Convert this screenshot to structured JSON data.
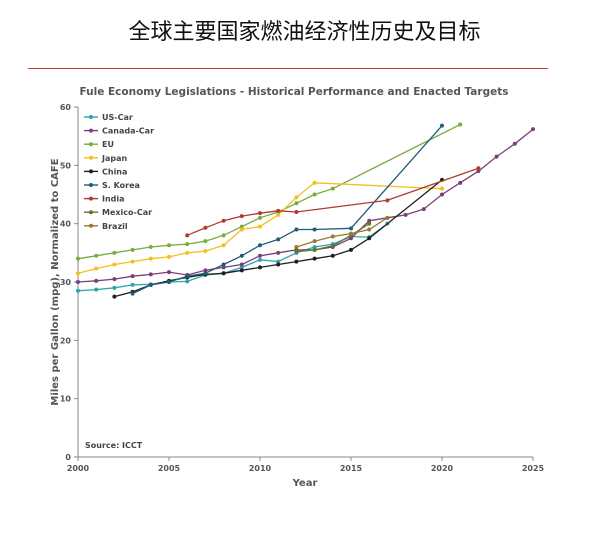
{
  "page": {
    "title": "全球主要国家燃油经济性历史及目标"
  },
  "chart_data": {
    "type": "line",
    "title": "Fule Economy Legislations - Historical Performance and Enacted Targets",
    "xlabel": "Year",
    "ylabel": "Miles per Gallon (mpg), Normalized to CAFE",
    "xlim": [
      2000,
      2025
    ],
    "ylim": [
      0,
      60
    ],
    "xticks": [
      2000,
      2005,
      2010,
      2015,
      2020,
      2025
    ],
    "yticks": [
      0,
      10,
      20,
      30,
      40,
      50,
      60
    ],
    "grid": false,
    "legend_position": "top-left",
    "source": "Source: ICCT",
    "series": [
      {
        "name": "US-Car",
        "color": "#2aa6b0",
        "points": [
          [
            2000,
            28.5
          ],
          [
            2001,
            28.7
          ],
          [
            2002,
            29
          ],
          [
            2003,
            29.5
          ],
          [
            2004,
            29.6
          ],
          [
            2005,
            30
          ],
          [
            2006,
            30.1
          ],
          [
            2007,
            31.2
          ],
          [
            2008,
            31.5
          ],
          [
            2009,
            32.5
          ],
          [
            2010,
            33.8
          ],
          [
            2011,
            33.5
          ],
          [
            2012,
            35
          ],
          [
            2013,
            36
          ],
          [
            2014,
            36.5
          ],
          [
            2015,
            37.8
          ],
          [
            2016,
            37.7
          ],
          [
            2017,
            40
          ]
        ]
      },
      {
        "name": "Canada-Car",
        "color": "#7b3f77",
        "points": [
          [
            2000,
            30
          ],
          [
            2001,
            30.2
          ],
          [
            2002,
            30.5
          ],
          [
            2003,
            31
          ],
          [
            2004,
            31.3
          ],
          [
            2005,
            31.7
          ],
          [
            2006,
            31.2
          ],
          [
            2007,
            32
          ],
          [
            2008,
            32.5
          ],
          [
            2009,
            33
          ],
          [
            2010,
            34.5
          ],
          [
            2011,
            35
          ],
          [
            2012,
            35.5
          ],
          [
            2013,
            35.5
          ],
          [
            2014,
            36
          ],
          [
            2015,
            37.5
          ],
          [
            2016,
            40.5
          ],
          [
            2017,
            41
          ],
          [
            2018,
            41.5
          ],
          [
            2019,
            42.5
          ],
          [
            2020,
            45
          ],
          [
            2021,
            47
          ],
          [
            2022,
            49
          ],
          [
            2023,
            51.5
          ],
          [
            2024,
            53.7
          ],
          [
            2025,
            56.2
          ]
        ]
      },
      {
        "name": "EU",
        "color": "#7aab3d",
        "points": [
          [
            2000,
            34
          ],
          [
            2001,
            34.5
          ],
          [
            2002,
            35
          ],
          [
            2003,
            35.5
          ],
          [
            2004,
            36
          ],
          [
            2005,
            36.3
          ],
          [
            2006,
            36.5
          ],
          [
            2007,
            37
          ],
          [
            2008,
            38
          ],
          [
            2009,
            39.5
          ],
          [
            2010,
            41
          ],
          [
            2011,
            42
          ],
          [
            2012,
            43.5
          ],
          [
            2013,
            45
          ],
          [
            2014,
            46
          ],
          [
            2021,
            57
          ]
        ]
      },
      {
        "name": "Japan",
        "color": "#f2c01e",
        "points": [
          [
            2000,
            31.5
          ],
          [
            2001,
            32.3
          ],
          [
            2002,
            33
          ],
          [
            2003,
            33.5
          ],
          [
            2004,
            34
          ],
          [
            2005,
            34.3
          ],
          [
            2006,
            35
          ],
          [
            2007,
            35.3
          ],
          [
            2008,
            36.3
          ],
          [
            2009,
            39
          ],
          [
            2010,
            39.5
          ],
          [
            2011,
            41.5
          ],
          [
            2012,
            44.5
          ],
          [
            2013,
            47
          ],
          [
            2020,
            46
          ]
        ]
      },
      {
        "name": "China",
        "color": "#1f1f1f",
        "points": [
          [
            2002,
            27.5
          ],
          [
            2003,
            28.3
          ],
          [
            2004,
            29.5
          ],
          [
            2005,
            30.2
          ],
          [
            2006,
            30.8
          ],
          [
            2007,
            31.3
          ],
          [
            2008,
            31.5
          ],
          [
            2009,
            32
          ],
          [
            2010,
            32.5
          ],
          [
            2011,
            33
          ],
          [
            2012,
            33.5
          ],
          [
            2013,
            34
          ],
          [
            2014,
            34.5
          ],
          [
            2015,
            35.5
          ],
          [
            2016,
            37.5
          ],
          [
            2020,
            47.5
          ]
        ]
      },
      {
        "name": "S. Korea",
        "color": "#1f5d78",
        "points": [
          [
            2003,
            28
          ],
          [
            2004,
            29.5
          ],
          [
            2005,
            30
          ],
          [
            2006,
            31
          ],
          [
            2007,
            31.5
          ],
          [
            2008,
            33
          ],
          [
            2009,
            34.5
          ],
          [
            2010,
            36.3
          ],
          [
            2011,
            37.3
          ],
          [
            2012,
            39
          ],
          [
            2013,
            39
          ],
          [
            2015,
            39.2
          ],
          [
            2020,
            56.8
          ]
        ]
      },
      {
        "name": "India",
        "color": "#b03a2e",
        "points": [
          [
            2006,
            38
          ],
          [
            2007,
            39.3
          ],
          [
            2008,
            40.5
          ],
          [
            2009,
            41.3
          ],
          [
            2010,
            41.8
          ],
          [
            2011,
            42.2
          ],
          [
            2012,
            42
          ],
          [
            2017,
            44
          ],
          [
            2022,
            49.5
          ]
        ]
      },
      {
        "name": "Mexico-Car",
        "color": "#5a7a2e",
        "points": [
          [
            2012,
            35.2
          ],
          [
            2013,
            35.5
          ],
          [
            2014,
            36.2
          ],
          [
            2015,
            38
          ],
          [
            2016,
            40
          ]
        ]
      },
      {
        "name": "Brazil",
        "color": "#9a7a2a",
        "points": [
          [
            2012,
            36
          ],
          [
            2013,
            37
          ],
          [
            2014,
            37.8
          ],
          [
            2015,
            38.3
          ],
          [
            2016,
            39
          ],
          [
            2017,
            41
          ]
        ]
      }
    ]
  }
}
